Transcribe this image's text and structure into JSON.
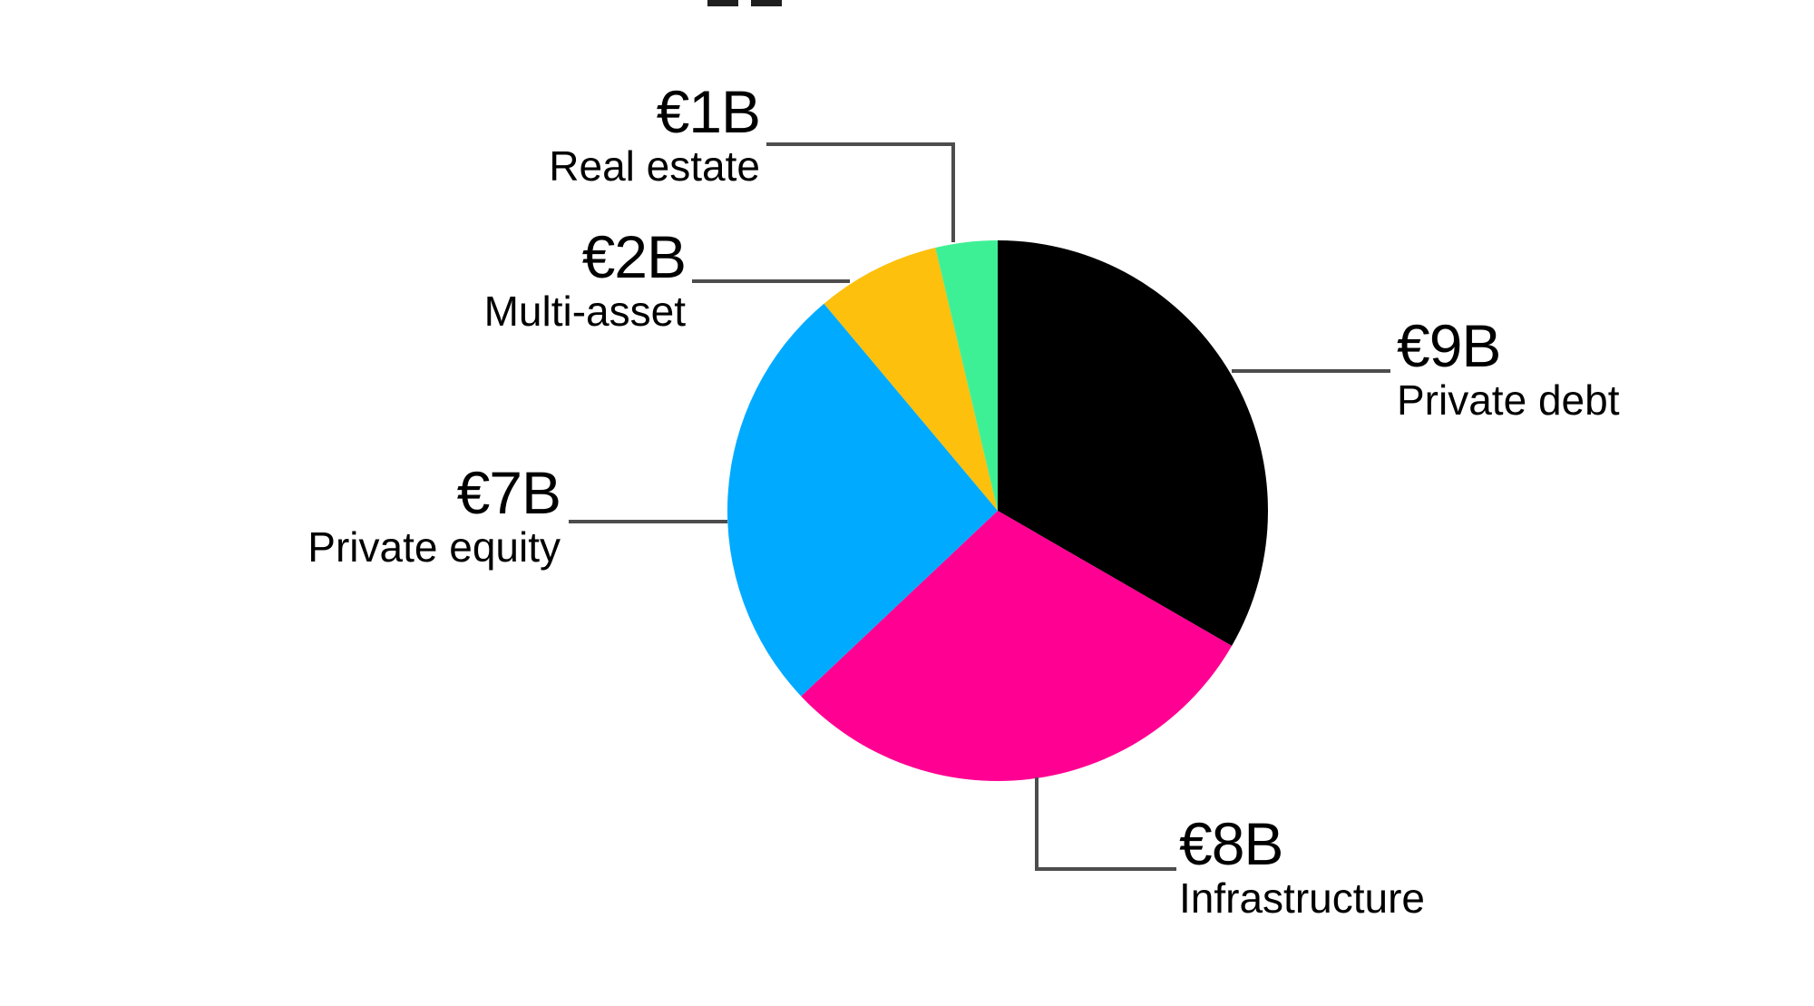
{
  "colors": {
    "background": "#ffffff",
    "text": "#000000",
    "leader_line": "#4d4d4d",
    "cropped_fragment": "#1f1f1f"
  },
  "chart_data": {
    "type": "pie",
    "unit": "EUR billions",
    "total": 27,
    "start_angle_deg": 0,
    "direction": "clockwise",
    "legend_position": "callout-labels",
    "slices": [
      {
        "label": "Private debt",
        "value_label": "€9B",
        "value": 9,
        "color": "#000000"
      },
      {
        "label": "Infrastructure",
        "value_label": "€8B",
        "value": 8,
        "color": "#ff0092"
      },
      {
        "label": "Private equity",
        "value_label": "€7B",
        "value": 7,
        "color": "#00aaff"
      },
      {
        "label": "Multi-asset",
        "value_label": "€2B",
        "value": 2,
        "color": "#fdc00c"
      },
      {
        "label": "Real estate",
        "value_label": "€1B",
        "value": 1,
        "color": "#3ef095"
      }
    ]
  }
}
